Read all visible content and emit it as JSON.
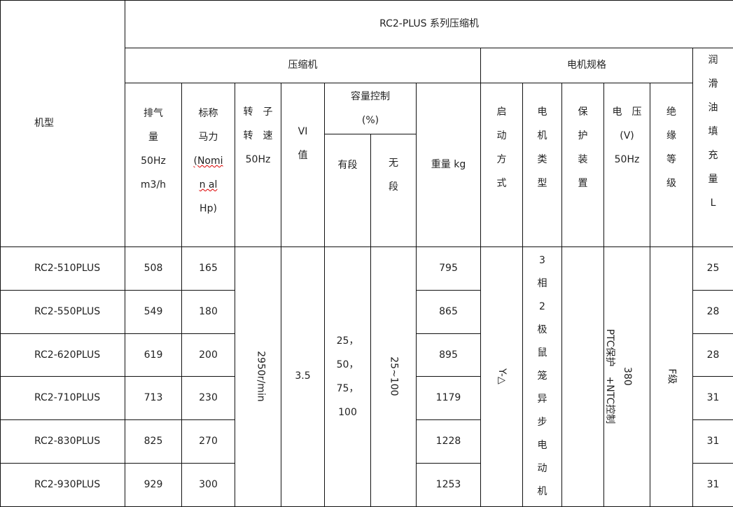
{
  "title": "RC2-PLUS 系列压缩机",
  "header": {
    "model": "机型",
    "compressor": "压缩机",
    "motor_spec": "电机规格",
    "oil": [
      "润",
      "滑",
      "油",
      "填",
      "充",
      "量",
      "L"
    ],
    "displacement": [
      "排气",
      "量",
      "50Hz",
      "m3/h"
    ],
    "nominal_hp": [
      "标称",
      "马力",
      "(Nomi",
      "n al",
      "Hp)"
    ],
    "rotor_speed": [
      "转　子",
      "转　速",
      "50Hz"
    ],
    "vi": [
      "VI",
      "值"
    ],
    "capacity_control": [
      "容量控制",
      "(%)"
    ],
    "stepped": "有段",
    "stepless": [
      "无",
      "段"
    ],
    "weight": "重量 kg",
    "start_method": [
      "启",
      "动",
      "方",
      "式"
    ],
    "motor_type": [
      "电",
      "机",
      "类",
      "型"
    ],
    "protection": [
      "保",
      "护",
      "装",
      "置"
    ],
    "voltage": [
      "电　压",
      "(V)",
      "50Hz"
    ],
    "insulation": [
      "绝",
      "缘",
      "等",
      "级"
    ]
  },
  "rows": [
    {
      "model": "RC2-510PLUS",
      "displacement": "508",
      "hp": "165",
      "weight": "795",
      "oil": "25"
    },
    {
      "model": "RC2-550PLUS",
      "displacement": "549",
      "hp": "180",
      "weight": "865",
      "oil": "28"
    },
    {
      "model": "RC2-620PLUS",
      "displacement": "619",
      "hp": "200",
      "weight": "895",
      "oil": "28"
    },
    {
      "model": "RC2-710PLUS",
      "displacement": "713",
      "hp": "230",
      "weight": "1179",
      "oil": "31"
    },
    {
      "model": "RC2-830PLUS",
      "displacement": "825",
      "hp": "270",
      "weight": "1228",
      "oil": "31"
    },
    {
      "model": "RC2-930PLUS",
      "displacement": "929",
      "hp": "300",
      "weight": "1253",
      "oil": "31"
    }
  ],
  "shared": {
    "rotor_speed": "2950r/min",
    "vi": "3.5",
    "stepped": [
      "25，",
      "50，",
      "75，",
      "100"
    ],
    "stepless": "25~100",
    "start_method": "Y-△",
    "motor_type": [
      "3",
      "相",
      "2",
      "极",
      "鼠",
      "笼",
      "异",
      "步",
      "电",
      "动",
      "机"
    ],
    "protection": "PTC保护　+NTC控制",
    "voltage": "380",
    "insulation": "F级"
  }
}
